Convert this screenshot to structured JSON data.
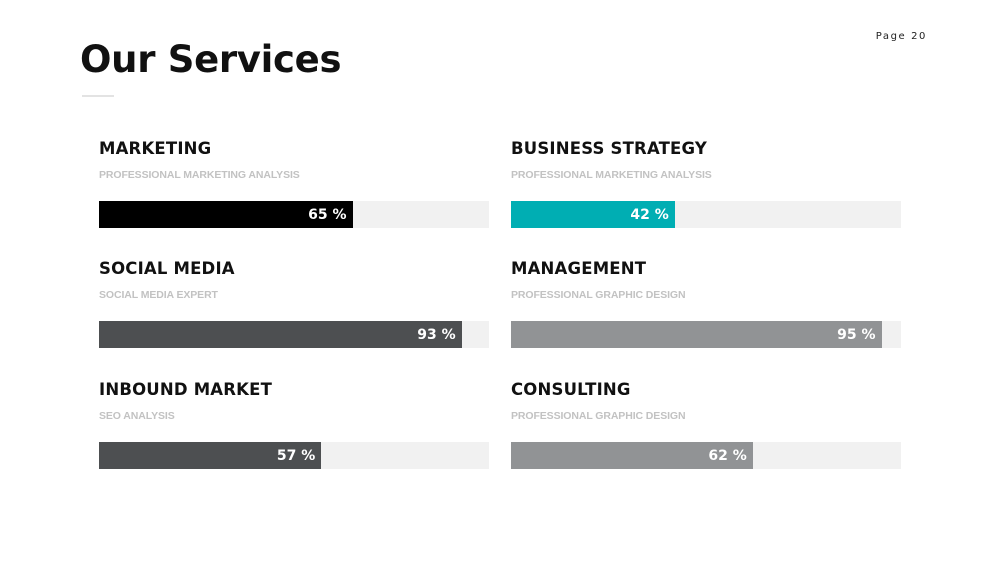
{
  "page_label": "Page 20",
  "title": "Our Services",
  "services": [
    {
      "name": "MARKETING",
      "subtitle": "PROFESSIONAL MARKETING ANALYSIS",
      "percent": 65,
      "percent_label": "65 %",
      "color": "#000000"
    },
    {
      "name": "BUSINESS STRATEGY",
      "subtitle": "PROFESSIONAL MARKETING ANALYSIS",
      "percent": 42,
      "percent_label": "42 %",
      "color": "#00aeb3"
    },
    {
      "name": "SOCIAL MEDIA",
      "subtitle": "SOCIAL MEDIA EXPERT",
      "percent": 93,
      "percent_label": "93 %",
      "color": "#4d4f51"
    },
    {
      "name": "MANAGEMENT",
      "subtitle": "PROFESSIONAL GRAPHIC DESIGN",
      "percent": 95,
      "percent_label": "95 %",
      "color": "#919395"
    },
    {
      "name": "INBOUND MARKET",
      "subtitle": "SEO ANALYSIS",
      "percent": 57,
      "percent_label": "57 %",
      "color": "#4d4f51"
    },
    {
      "name": "CONSULTING",
      "subtitle": "PROFESSIONAL GRAPHIC DESIGN",
      "percent": 62,
      "percent_label": "62 %",
      "color": "#919395"
    }
  ]
}
